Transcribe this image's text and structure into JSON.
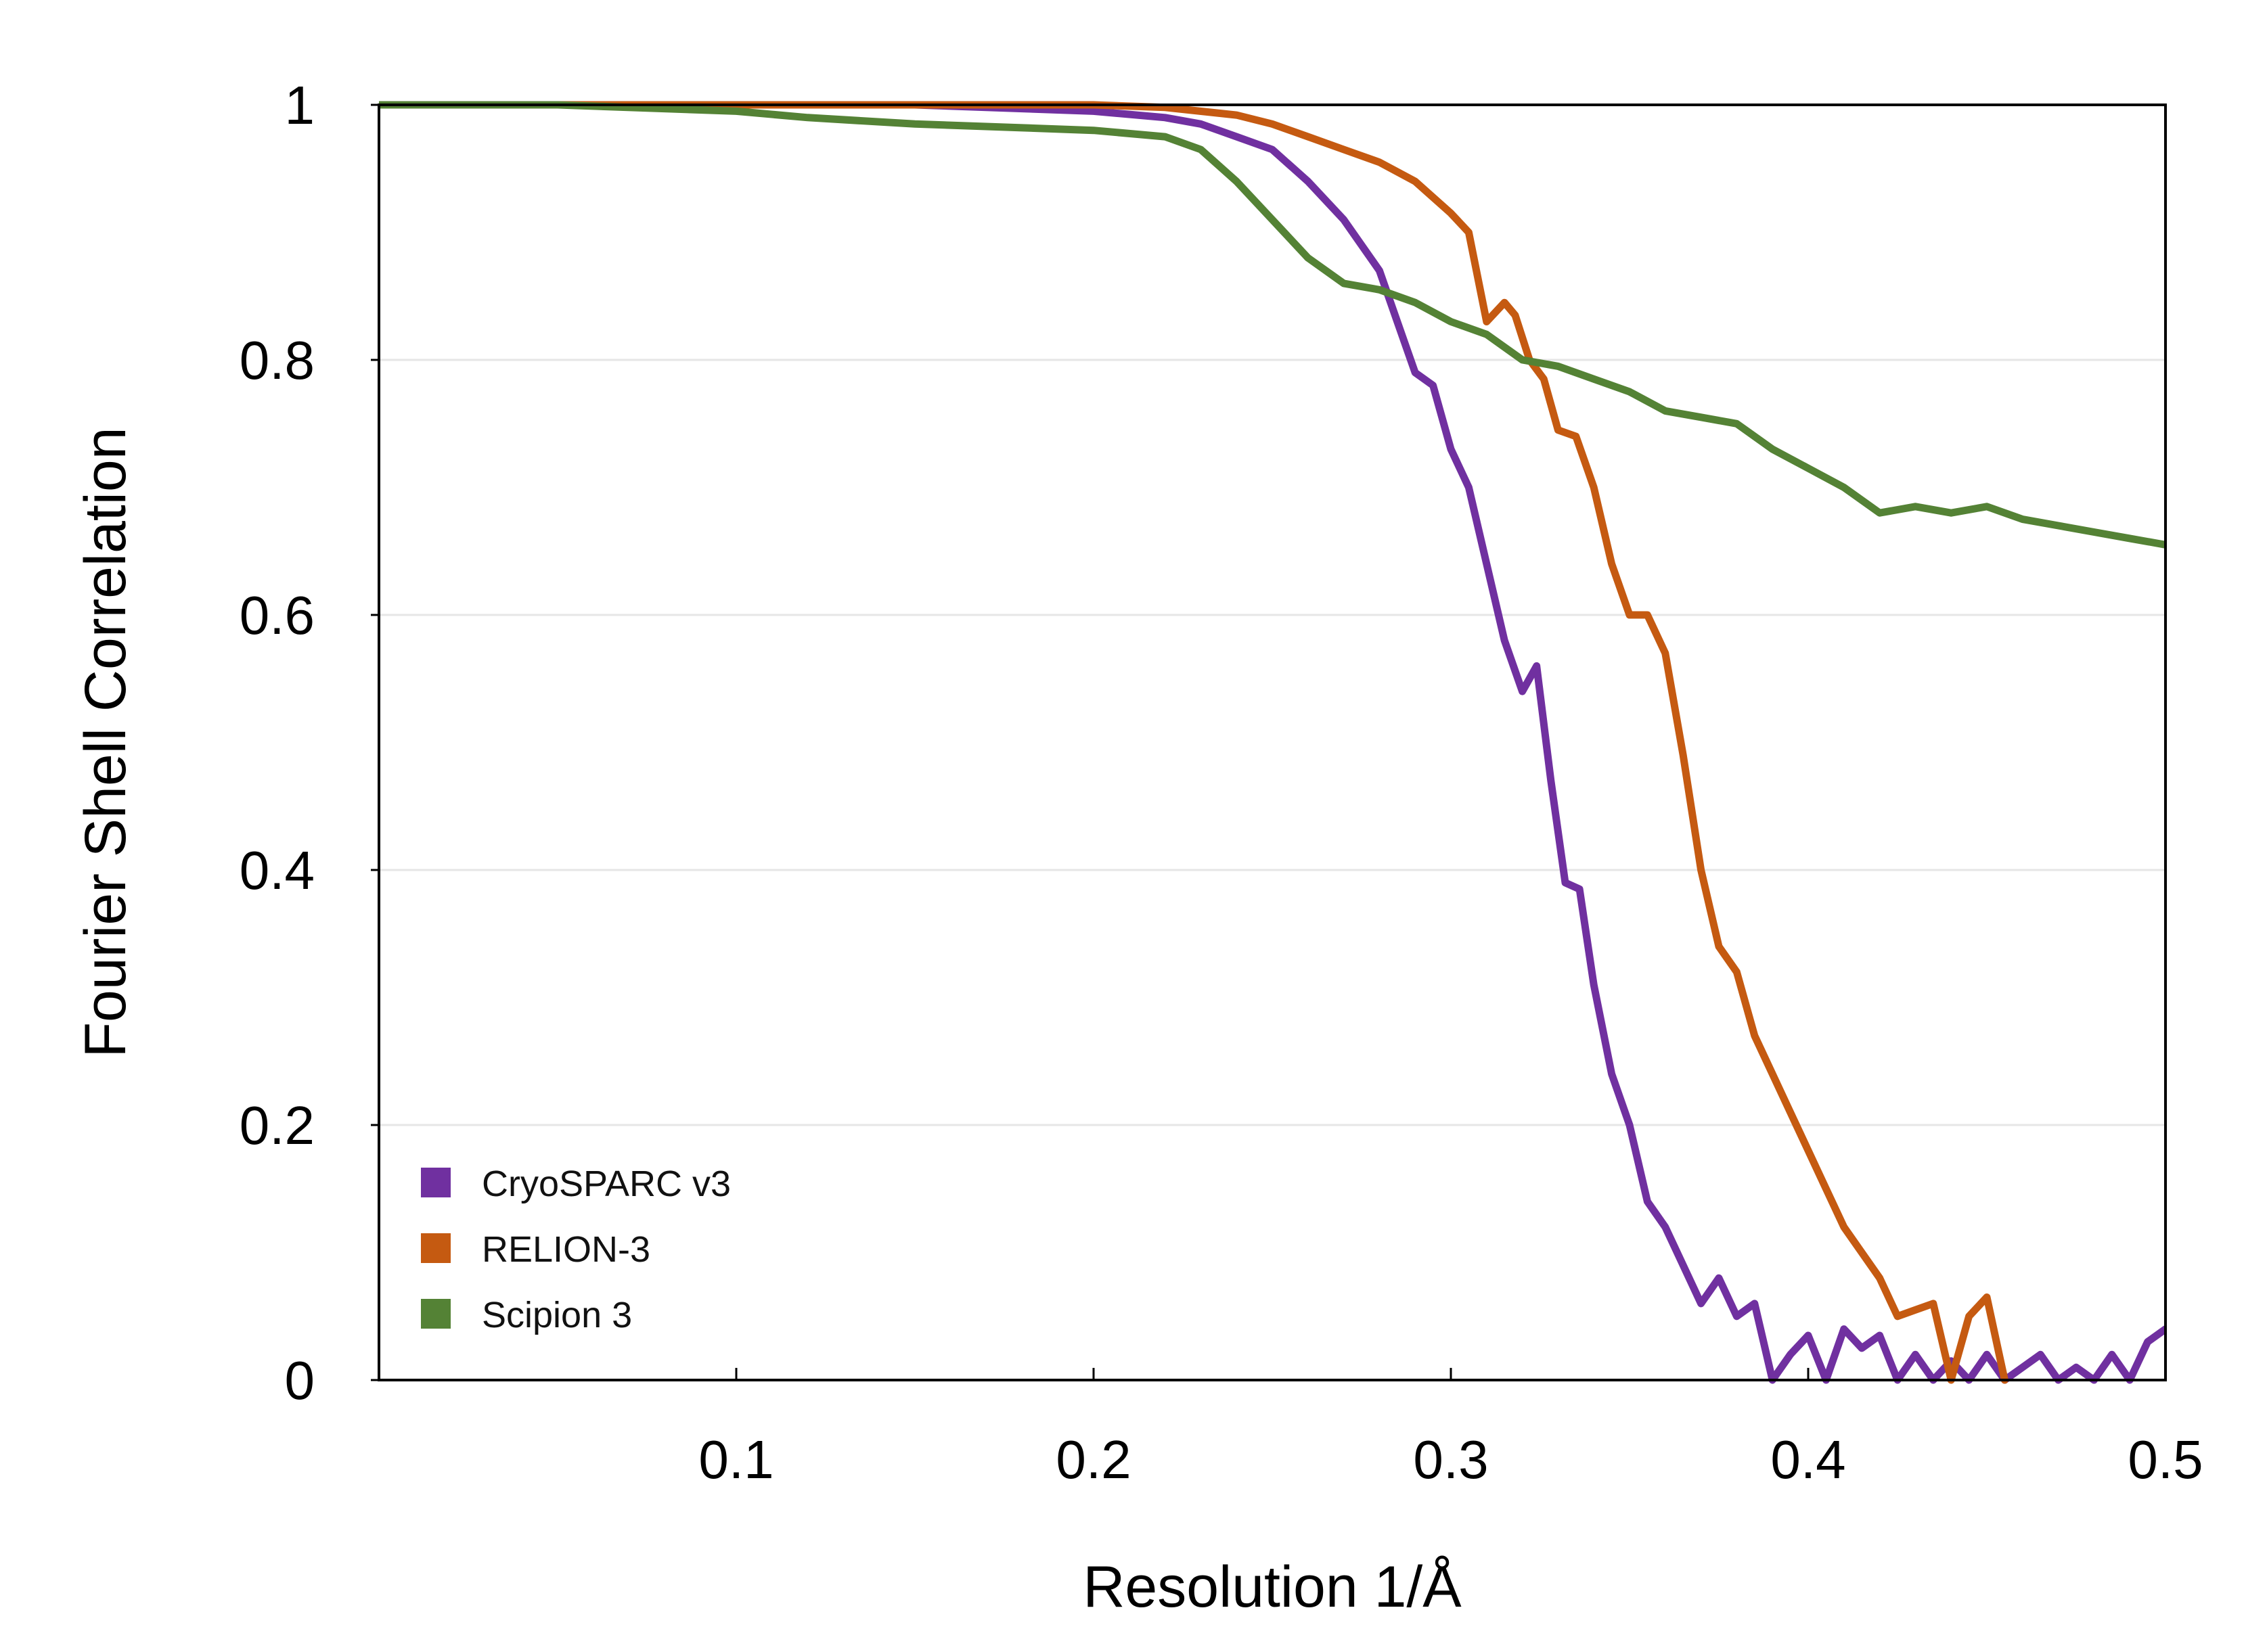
{
  "chart_data": {
    "type": "line",
    "title": "",
    "xlabel": "Resolution 1/Å",
    "ylabel": "Fourier Shell Correlation",
    "xlim": [
      0,
      0.5
    ],
    "ylim": [
      0,
      1
    ],
    "grid": true,
    "legend_position": "bottom-left",
    "x_ticks": [
      0.1,
      0.2,
      0.3,
      0.4,
      0.5
    ],
    "x_tick_labels": [
      "0.1",
      "0.2",
      "0.3",
      "0.4",
      "0.5"
    ],
    "y_ticks": [
      0,
      0.2,
      0.4,
      0.6,
      0.8,
      1
    ],
    "y_tick_labels": [
      "0",
      "0.2",
      "0.4",
      "0.6",
      "0.8",
      "1"
    ],
    "series": [
      {
        "name": "CryoSPARC v3",
        "color": "#7030a0",
        "x": [
          0,
          0.05,
          0.1,
          0.15,
          0.2,
          0.22,
          0.23,
          0.24,
          0.25,
          0.26,
          0.27,
          0.28,
          0.285,
          0.29,
          0.295,
          0.3,
          0.305,
          0.31,
          0.315,
          0.32,
          0.324,
          0.328,
          0.332,
          0.336,
          0.34,
          0.345,
          0.35,
          0.355,
          0.36,
          0.365,
          0.37,
          0.375,
          0.38,
          0.385,
          0.39,
          0.395,
          0.4,
          0.405,
          0.41,
          0.415,
          0.42,
          0.425,
          0.43,
          0.435,
          0.44,
          0.445,
          0.45,
          0.455,
          0.46,
          0.465,
          0.47,
          0.475,
          0.48,
          0.485,
          0.49,
          0.495,
          0.5
        ],
        "values": [
          1,
          1,
          1,
          1,
          0.995,
          0.99,
          0.985,
          0.975,
          0.965,
          0.94,
          0.91,
          0.87,
          0.83,
          0.79,
          0.78,
          0.73,
          0.7,
          0.64,
          0.58,
          0.54,
          0.56,
          0.47,
          0.39,
          0.385,
          0.31,
          0.24,
          0.2,
          0.14,
          0.12,
          0.09,
          0.06,
          0.08,
          0.05,
          0.06,
          0.0,
          0.02,
          0.035,
          0.0,
          0.04,
          0.025,
          0.035,
          0.0,
          0.02,
          0.0,
          0.015,
          0.0,
          0.02,
          0.0,
          0.01,
          0.02,
          0.0,
          0.01,
          0.0,
          0.02,
          0.0,
          0.03,
          0.04
        ]
      },
      {
        "name": "RELION-3",
        "color": "#c55a11",
        "x": [
          0,
          0.05,
          0.1,
          0.15,
          0.2,
          0.22,
          0.24,
          0.25,
          0.26,
          0.27,
          0.28,
          0.29,
          0.3,
          0.305,
          0.31,
          0.315,
          0.318,
          0.322,
          0.326,
          0.33,
          0.335,
          0.34,
          0.345,
          0.35,
          0.355,
          0.36,
          0.365,
          0.37,
          0.375,
          0.38,
          0.385,
          0.39,
          0.395,
          0.4,
          0.405,
          0.41,
          0.415,
          0.42,
          0.425,
          0.43,
          0.435,
          0.44,
          0.445,
          0.45,
          0.455
        ],
        "values": [
          1,
          1,
          1,
          1,
          1,
          0.998,
          0.992,
          0.985,
          0.975,
          0.965,
          0.955,
          0.94,
          0.915,
          0.9,
          0.83,
          0.845,
          0.835,
          0.8,
          0.785,
          0.745,
          0.74,
          0.7,
          0.64,
          0.6,
          0.6,
          0.57,
          0.49,
          0.4,
          0.34,
          0.32,
          0.27,
          0.24,
          0.21,
          0.18,
          0.15,
          0.12,
          0.1,
          0.08,
          0.05,
          0.055,
          0.06,
          0.0,
          0.05,
          0.065,
          0.0
        ]
      },
      {
        "name": "Scipion 3",
        "color": "#548235",
        "x": [
          0,
          0.05,
          0.1,
          0.12,
          0.15,
          0.18,
          0.2,
          0.22,
          0.23,
          0.24,
          0.25,
          0.26,
          0.27,
          0.28,
          0.29,
          0.3,
          0.31,
          0.32,
          0.33,
          0.34,
          0.35,
          0.36,
          0.37,
          0.38,
          0.39,
          0.4,
          0.41,
          0.42,
          0.43,
          0.44,
          0.45,
          0.46,
          0.47,
          0.48,
          0.49,
          0.5
        ],
        "values": [
          1,
          1,
          0.995,
          0.99,
          0.985,
          0.982,
          0.98,
          0.975,
          0.965,
          0.94,
          0.91,
          0.88,
          0.86,
          0.855,
          0.845,
          0.83,
          0.82,
          0.8,
          0.795,
          0.785,
          0.775,
          0.76,
          0.755,
          0.75,
          0.73,
          0.715,
          0.7,
          0.68,
          0.685,
          0.68,
          0.685,
          0.675,
          0.67,
          0.665,
          0.66,
          0.655
        ]
      }
    ]
  }
}
